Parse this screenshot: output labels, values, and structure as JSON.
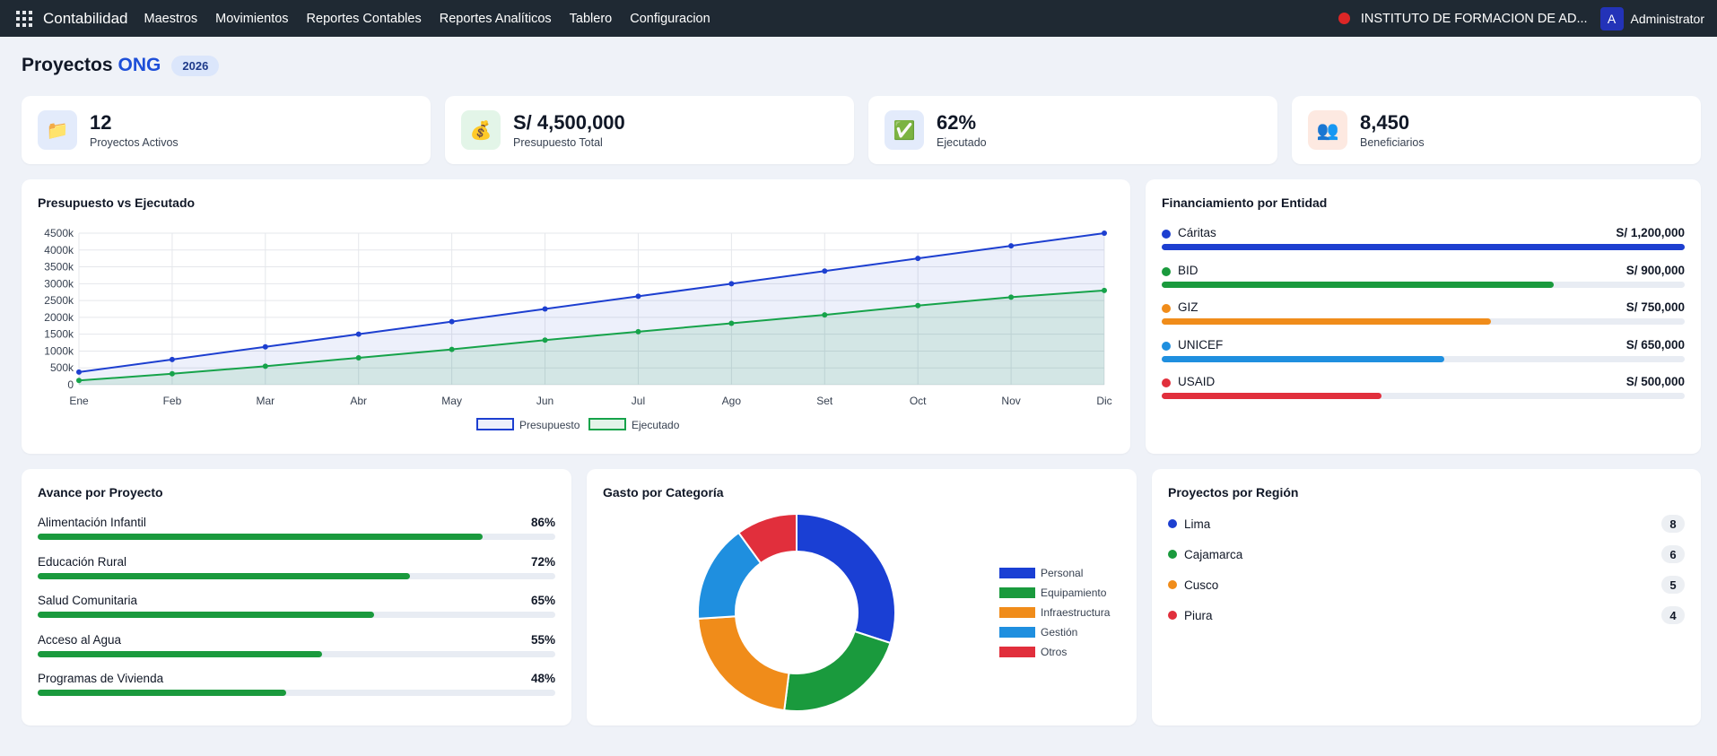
{
  "nav": {
    "brand": "Contabilidad",
    "items": [
      "Maestros",
      "Movimientos",
      "Reportes Contables",
      "Reportes Analíticos",
      "Tablero",
      "Configuracion"
    ],
    "company": "INSTITUTO DE FORMACION DE AD...",
    "avatar_letter": "A",
    "user": "Administrator",
    "icons": {
      "apps": "grid-apps-icon",
      "company_status": "red-dot"
    }
  },
  "title": {
    "main": "Proyectos",
    "accent": "ONG",
    "year": "2026"
  },
  "kpis": [
    {
      "value": "12",
      "label": "Proyectos Activos",
      "icon": "📁",
      "icon_name": "folder-icon",
      "bg": "#e3ebfb"
    },
    {
      "value": "S/ 4,500,000",
      "label": "Presupuesto Total",
      "icon": "💰",
      "icon_name": "money-bag-icon",
      "bg": "#e3f5e8"
    },
    {
      "value": "62%",
      "label": "Ejecutado",
      "icon": "✅",
      "icon_name": "check-icon",
      "bg": "#e3ebfb"
    },
    {
      "value": "8,450",
      "label": "Beneficiarios",
      "icon": "👥",
      "icon_name": "people-icon",
      "bg": "#fde9e1"
    }
  ],
  "budget_chart": {
    "title": "Presupuesto vs Ejecutado"
  },
  "chart_data": {
    "type": "line",
    "x": [
      "Ene",
      "Feb",
      "Mar",
      "Abr",
      "May",
      "Jun",
      "Jul",
      "Ago",
      "Set",
      "Oct",
      "Nov",
      "Dic"
    ],
    "series": [
      {
        "name": "Presupuesto",
        "color": "#1d3fd0",
        "fill": "rgba(29,63,208,0.08)",
        "values": [
          375,
          750,
          1125,
          1500,
          1875,
          2250,
          2625,
          3000,
          3375,
          3750,
          4125,
          4500
        ]
      },
      {
        "name": "Ejecutado",
        "color": "#16a34a",
        "fill": "rgba(22,163,74,0.12)",
        "values": [
          125,
          325,
          550,
          800,
          1050,
          1325,
          1575,
          1825,
          2075,
          2350,
          2600,
          2800
        ]
      }
    ],
    "yticks": [
      "0",
      "500k",
      "1000k",
      "1500k",
      "2000k",
      "2500k",
      "3000k",
      "3500k",
      "4000k",
      "4500k"
    ],
    "ylim": [
      0,
      4500
    ],
    "grid": true,
    "legend": "bottom"
  },
  "funding": {
    "title": "Financiamiento por Entidad",
    "items": [
      {
        "name": "Cáritas",
        "amount": "S/ 1,200,000",
        "fraction": 1.0,
        "color": "#1d3fd0"
      },
      {
        "name": "BID",
        "amount": "S/ 900,000",
        "fraction": 0.75,
        "color": "#1a9a3d"
      },
      {
        "name": "GIZ",
        "amount": "S/ 750,000",
        "fraction": 0.63,
        "color": "#f08c1a"
      },
      {
        "name": "UNICEF",
        "amount": "S/ 650,000",
        "fraction": 0.54,
        "color": "#1f8fdf"
      },
      {
        "name": "USAID",
        "amount": "S/ 500,000",
        "fraction": 0.42,
        "color": "#e12f3c"
      }
    ]
  },
  "progress": {
    "title": "Avance por Proyecto",
    "color": "#1a9a3d",
    "items": [
      {
        "name": "Alimentación Infantil",
        "pct": "86%",
        "value": 86
      },
      {
        "name": "Educación Rural",
        "pct": "72%",
        "value": 72
      },
      {
        "name": "Salud Comunitaria",
        "pct": "65%",
        "value": 65
      },
      {
        "name": "Acceso al Agua",
        "pct": "55%",
        "value": 55
      },
      {
        "name": "Programas de Vivienda",
        "pct": "48%",
        "value": 48
      }
    ]
  },
  "spending": {
    "title": "Gasto por Categoría",
    "type": "doughnut",
    "categories": [
      "Personal",
      "Equipamiento",
      "Infraestructura",
      "Gestión",
      "Otros"
    ],
    "values": [
      30,
      22,
      22,
      16,
      10
    ],
    "colors": [
      "#1a3fd4",
      "#1a9a3d",
      "#f08c1a",
      "#1f8fdf",
      "#e12f3c"
    ]
  },
  "regions": {
    "title": "Proyectos por Región",
    "items": [
      {
        "name": "Lima",
        "count": "8",
        "color": "#1d3fd0"
      },
      {
        "name": "Cajamarca",
        "count": "6",
        "color": "#1a9a3d"
      },
      {
        "name": "Cusco",
        "count": "5",
        "color": "#f08c1a"
      },
      {
        "name": "Piura",
        "count": "4",
        "color": "#e12f3c"
      }
    ]
  }
}
